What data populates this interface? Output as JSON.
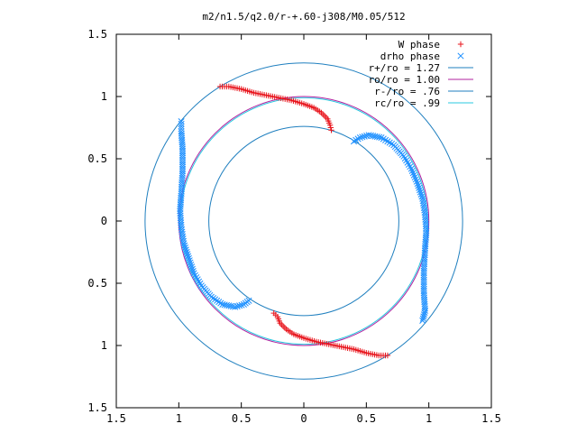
{
  "chart_data": {
    "type": "scatter",
    "title": "m2/n1.5/q2.0/r-+.60-j308/M0.05/512",
    "xlabel": "",
    "ylabel": "",
    "xlim": [
      -1.5,
      1.5
    ],
    "ylim": [
      -1.5,
      1.5
    ],
    "x_tick_values": [
      -1.5,
      -1,
      -0.5,
      0,
      0.5,
      1,
      1.5
    ],
    "x_tick_labels": [
      "1.5",
      "1",
      "0.5",
      "0",
      "0.5",
      "1",
      "1.5"
    ],
    "y_tick_values": [
      1.5,
      1,
      0.5,
      0,
      -0.5,
      -1,
      -1.5
    ],
    "y_tick_labels": [
      "1.5",
      "1",
      "0.5",
      "0",
      "0.5",
      "1",
      "1.5"
    ],
    "grid": false,
    "legend_position": "top-right",
    "circles": [
      {
        "name": "r+/ro = 1.27",
        "radius": 1.27,
        "color": "#1f7fbf"
      },
      {
        "name": "ro/ro = 1.00",
        "radius": 1.0,
        "color": "#b0209f"
      },
      {
        "name": "r-/ro = .76",
        "radius": 0.76,
        "color": "#1f7fbf"
      },
      {
        "name": "rc/ro = .99",
        "radius": 0.99,
        "color": "#29c8e0"
      }
    ],
    "series": [
      {
        "name": "W phase",
        "marker": "plus",
        "color": "#e8141c",
        "arms": [
          [
            [
              -0.67,
              1.08
            ],
            [
              -0.6,
              1.08
            ],
            [
              -0.5,
              1.06
            ],
            [
              -0.4,
              1.03
            ],
            [
              -0.3,
              1.01
            ],
            [
              -0.2,
              0.99
            ],
            [
              -0.1,
              0.97
            ],
            [
              0.0,
              0.94
            ],
            [
              0.08,
              0.91
            ],
            [
              0.14,
              0.87
            ],
            [
              0.19,
              0.82
            ],
            [
              0.21,
              0.77
            ],
            [
              0.22,
              0.73
            ]
          ],
          [
            [
              0.67,
              -1.08
            ],
            [
              0.6,
              -1.08
            ],
            [
              0.5,
              -1.06
            ],
            [
              0.4,
              -1.03
            ],
            [
              0.3,
              -1.01
            ],
            [
              0.2,
              -0.99
            ],
            [
              0.1,
              -0.97
            ],
            [
              0.0,
              -0.94
            ],
            [
              -0.08,
              -0.91
            ],
            [
              -0.14,
              -0.87
            ],
            [
              -0.19,
              -0.82
            ],
            [
              -0.21,
              -0.77
            ],
            [
              -0.24,
              -0.74
            ]
          ]
        ]
      },
      {
        "name": "drho phase",
        "marker": "cross",
        "color": "#1e90ff",
        "arms": [
          [
            [
              0.4,
              0.64
            ],
            [
              0.45,
              0.67
            ],
            [
              0.52,
              0.69
            ],
            [
              0.62,
              0.67
            ],
            [
              0.72,
              0.61
            ],
            [
              0.8,
              0.52
            ],
            [
              0.86,
              0.42
            ],
            [
              0.91,
              0.3
            ],
            [
              0.95,
              0.18
            ],
            [
              0.97,
              0.05
            ],
            [
              0.98,
              -0.08
            ],
            [
              0.97,
              -0.22
            ],
            [
              0.96,
              -0.4
            ],
            [
              0.96,
              -0.58
            ],
            [
              0.97,
              -0.72
            ],
            [
              0.95,
              -0.8
            ]
          ],
          [
            [
              -0.44,
              -0.64
            ],
            [
              -0.48,
              -0.67
            ],
            [
              -0.55,
              -0.69
            ],
            [
              -0.65,
              -0.67
            ],
            [
              -0.74,
              -0.61
            ],
            [
              -0.82,
              -0.52
            ],
            [
              -0.88,
              -0.42
            ],
            [
              -0.92,
              -0.3
            ],
            [
              -0.96,
              -0.18
            ],
            [
              -0.98,
              -0.05
            ],
            [
              -0.99,
              0.08
            ],
            [
              -0.98,
              0.22
            ],
            [
              -0.97,
              0.4
            ],
            [
              -0.97,
              0.58
            ],
            [
              -0.98,
              0.72
            ],
            [
              -0.98,
              0.8
            ]
          ]
        ]
      }
    ]
  }
}
